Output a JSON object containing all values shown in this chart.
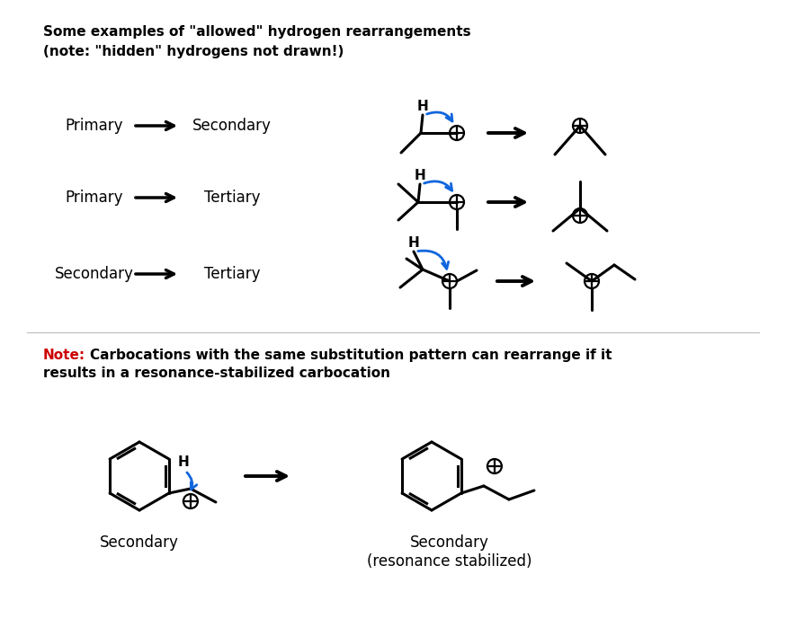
{
  "title_line1": "Some examples of \"allowed\" hydrogen rearrangements",
  "title_line2": "(note: \"hidden\" hydrogens not drawn!)",
  "note_part1": "Note:",
  "note_part2": " Carbocations with the same substitution pattern can rearrange if it",
  "note_line2": "results in a resonance-stabilized carbocation",
  "row_labels": [
    [
      "Primary",
      "Secondary"
    ],
    [
      "Primary",
      "Tertiary"
    ],
    [
      "Secondary",
      "Tertiary"
    ]
  ],
  "bottom_left_label": "Secondary",
  "bottom_right_label": "Secondary\n(resonance stabilized)",
  "black": "#000000",
  "red": "#cc0000",
  "blue": "#1166dd",
  "white": "#ffffff",
  "blw": 2.2,
  "fig_w": 8.74,
  "fig_h": 7.08,
  "dpi": 100
}
